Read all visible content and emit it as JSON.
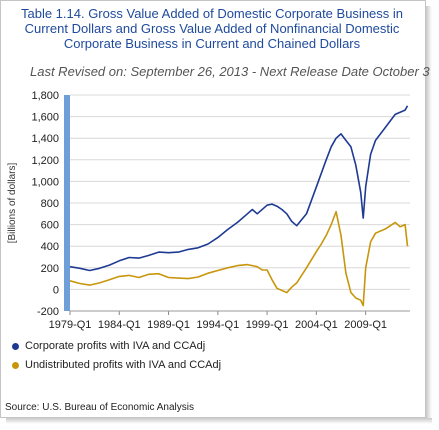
{
  "title": "Table 1.14. Gross Value Added of Domestic Corporate Business in Current Dollars and Gross Value Added of Nonfinancial Domestic Corporate Business in Current and Chained Dollars",
  "subtitle": "Last Revised on: September 26, 2013 - Next Release Date October 3",
  "source": "Source: U.S. Bureau of Economic Analysis",
  "chart_data": {
    "type": "line",
    "title": "",
    "xlabel": "",
    "ylabel": "[Billions of dollars]",
    "xlim": [
      1979.0,
      2013.5
    ],
    "ylim": [
      -200,
      1800
    ],
    "yticks": [
      -200,
      0,
      200,
      400,
      600,
      800,
      1000,
      1200,
      1400,
      1600,
      1800
    ],
    "ytick_labels": [
      "-200",
      "0",
      "200",
      "400",
      "600",
      "800",
      "1,000",
      "1,200",
      "1,400",
      "1,600",
      "1,800"
    ],
    "xticks": [
      1979.0,
      1984.0,
      1989.0,
      1994.0,
      1999.0,
      2004.0,
      2009.0
    ],
    "xtick_labels": [
      "1979-Q1",
      "1984-Q1",
      "1989-Q1",
      "1994-Q1",
      "1999-Q1",
      "2004-Q1",
      "2009-Q1"
    ],
    "grid": true,
    "legend": "bottom",
    "series": [
      {
        "name": "Corporate profits with IVA and CCAdj",
        "color": "#1f3a93",
        "x": [
          1979.0,
          1980.0,
          1981.0,
          1982.0,
          1983.0,
          1984.0,
          1985.0,
          1986.0,
          1987.0,
          1988.0,
          1989.0,
          1990.0,
          1991.0,
          1992.0,
          1993.0,
          1994.0,
          1995.0,
          1996.0,
          1997.0,
          1997.5,
          1998.0,
          1999.0,
          1999.5,
          2000.0,
          2000.5,
          2001.0,
          2001.5,
          2002.0,
          2003.0,
          2004.0,
          2005.0,
          2005.5,
          2006.0,
          2006.5,
          2007.0,
          2007.5,
          2008.0,
          2008.5,
          2008.75,
          2009.0,
          2009.5,
          2010.0,
          2011.0,
          2012.0,
          2013.0,
          2013.25
        ],
        "values": [
          210,
          195,
          175,
          195,
          225,
          265,
          295,
          290,
          315,
          345,
          340,
          345,
          370,
          385,
          420,
          480,
          555,
          620,
          700,
          740,
          700,
          780,
          790,
          770,
          740,
          700,
          630,
          590,
          700,
          950,
          1200,
          1320,
          1400,
          1440,
          1380,
          1320,
          1150,
          900,
          660,
          950,
          1250,
          1380,
          1500,
          1620,
          1660,
          1700
        ]
      },
      {
        "name": "Undistributed profits with IVA and CCAdj",
        "color": "#c8960c",
        "x": [
          1979.0,
          1980.0,
          1981.0,
          1982.0,
          1983.0,
          1984.0,
          1985.0,
          1986.0,
          1987.0,
          1988.0,
          1989.0,
          1990.0,
          1991.0,
          1992.0,
          1993.0,
          1994.0,
          1995.0,
          1996.0,
          1997.0,
          1998.0,
          1998.5,
          1999.0,
          1999.5,
          2000.0,
          2001.0,
          2001.5,
          2002.0,
          2003.0,
          2004.0,
          2004.5,
          2005.0,
          2005.5,
          2006.0,
          2006.5,
          2007.0,
          2007.5,
          2008.0,
          2008.5,
          2008.75,
          2009.0,
          2009.5,
          2010.0,
          2011.0,
          2012.0,
          2012.5,
          2013.0,
          2013.25
        ],
        "values": [
          80,
          55,
          40,
          60,
          90,
          120,
          130,
          110,
          140,
          145,
          110,
          105,
          100,
          115,
          150,
          175,
          200,
          220,
          230,
          210,
          180,
          180,
          90,
          10,
          -30,
          20,
          60,
          200,
          350,
          420,
          500,
          600,
          720,
          500,
          150,
          -30,
          -80,
          -100,
          -150,
          200,
          440,
          520,
          560,
          620,
          580,
          600,
          400
        ]
      }
    ]
  }
}
